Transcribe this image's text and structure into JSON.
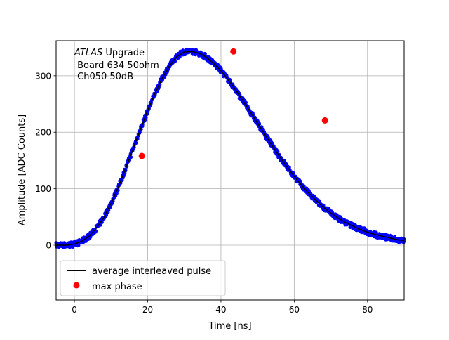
{
  "chart_data": {
    "type": "scatter",
    "annotation": {
      "italic": "ATLAS",
      "line1_rest": " Upgrade",
      "line2": " Board 634 50ohm",
      "line3": " Ch050 50dB"
    },
    "xlabel": "Time [ns]",
    "ylabel": "Amplitude [ADC Counts]",
    "xlim": [
      -5,
      90
    ],
    "ylim": [
      -97,
      362
    ],
    "x_ticks": [
      0,
      20,
      40,
      60,
      80
    ],
    "y_ticks": [
      0,
      100,
      200,
      300
    ],
    "grid": true,
    "legend_placement": "lower-left",
    "colors": {
      "samples": "#0000ff",
      "average": "#000000",
      "max_phase": "#ff0000"
    },
    "series": [
      {
        "kind": "samples",
        "style": "blue dots",
        "x": [
          -5,
          -4,
          -3,
          -2,
          -1,
          0,
          1,
          2,
          3,
          4,
          5,
          6,
          7,
          8,
          9,
          10,
          11,
          12,
          13,
          14,
          15,
          16,
          17,
          18,
          19,
          20,
          21,
          22,
          23,
          24,
          25,
          26,
          27,
          28,
          29,
          30,
          31,
          32,
          33,
          34,
          35,
          36,
          37,
          38,
          39,
          40,
          41,
          42,
          43,
          44,
          45,
          46,
          47,
          48,
          49,
          50,
          51,
          52,
          53,
          54,
          55,
          56,
          57,
          58,
          59,
          60,
          61,
          62,
          63,
          64,
          65,
          66,
          67,
          68,
          69,
          70,
          71,
          72,
          73,
          74,
          75,
          76,
          77,
          78,
          79,
          80,
          81,
          82,
          83,
          84,
          85,
          86,
          87,
          88,
          89,
          90
        ],
        "y": [
          0,
          0,
          0,
          0,
          1,
          2,
          4,
          7,
          11,
          16,
          22,
          30,
          39,
          49,
          61,
          74,
          88,
          103,
          119,
          136,
          153,
          170,
          188,
          205,
          222,
          238,
          254,
          269,
          283,
          296,
          308,
          318,
          327,
          334,
          339,
          342,
          343,
          343,
          342,
          340,
          337,
          333,
          328,
          322,
          316,
          309,
          301,
          293,
          284,
          275,
          265,
          256,
          246,
          236,
          226,
          216,
          206,
          196,
          186,
          176,
          166,
          157,
          148,
          139,
          130,
          122,
          114,
          106,
          99,
          92,
          85,
          79,
          73,
          67,
          62,
          57,
          52,
          48,
          44,
          40,
          37,
          34,
          31,
          28,
          26,
          23,
          21,
          19,
          17,
          16,
          14,
          13,
          11,
          10,
          9,
          8
        ]
      },
      {
        "name": "average interleaved pulse",
        "style": "black line",
        "x": [
          -5,
          -2,
          0,
          2,
          4,
          6,
          8,
          10,
          12,
          14,
          16,
          18,
          20,
          22,
          24,
          26,
          28,
          30,
          32,
          34,
          36,
          38,
          40,
          42,
          44,
          46,
          48,
          50,
          52,
          54,
          56,
          58,
          60,
          62,
          64,
          66,
          68,
          70,
          72,
          74,
          76,
          78,
          80,
          82,
          84,
          86,
          88,
          90
        ],
        "y": [
          0,
          0,
          2,
          7,
          16,
          30,
          49,
          74,
          103,
          136,
          170,
          205,
          238,
          269,
          296,
          318,
          334,
          342,
          343,
          340,
          333,
          322,
          309,
          293,
          275,
          256,
          236,
          216,
          196,
          176,
          157,
          139,
          122,
          106,
          92,
          79,
          67,
          57,
          48,
          40,
          34,
          28,
          23,
          19,
          16,
          13,
          10,
          8
        ]
      },
      {
        "name": "max phase",
        "style": "red circles",
        "x": [
          18.4,
          43.4,
          68.4
        ],
        "y": [
          158,
          343,
          221
        ]
      }
    ]
  }
}
